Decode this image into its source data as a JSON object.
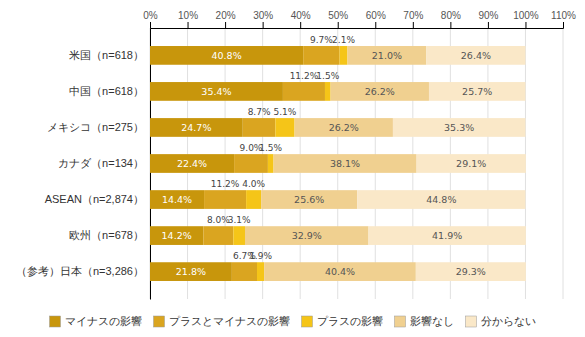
{
  "chart_data": {
    "type": "bar",
    "orientation": "horizontal",
    "stacked": true,
    "categories": [
      "米国（n=618）",
      "中国（n=618）",
      "メキシコ（n=275）",
      "カナダ（n=134）",
      "ASEAN（n=2,874）",
      "欧州（n=678）",
      "（参考）日本（n=3,286）"
    ],
    "series": [
      {
        "name": "マイナスの影響",
        "color": "#C8960C",
        "values": [
          40.8,
          35.4,
          24.7,
          22.4,
          14.4,
          14.2,
          21.8
        ],
        "value_labels": [
          "40.8%",
          "35.4%",
          "24.7%",
          "22.4%",
          "14.4%",
          "14.2%",
          "21.8%"
        ]
      },
      {
        "name": "プラスとマイナスの影響",
        "color": "#DAA520",
        "values": [
          9.7,
          11.2,
          8.7,
          9.0,
          11.2,
          8.0,
          6.7
        ],
        "value_labels": [
          "9.7%",
          "11.2%",
          "8.7%",
          "9.0%",
          "11.2%",
          "8.0%",
          "6.7%"
        ]
      },
      {
        "name": "プラスの影響",
        "color": "#F5C518",
        "values": [
          2.1,
          1.5,
          5.1,
          1.5,
          4.0,
          3.1,
          1.9
        ],
        "value_labels": [
          "2.1%",
          "1.5%",
          "5.1%",
          "1.5%",
          "4.0%",
          "3.1%",
          "1.9%"
        ]
      },
      {
        "name": "影響なし",
        "color": "#F0D090",
        "values": [
          21.0,
          26.2,
          26.2,
          38.1,
          25.6,
          32.9,
          40.4
        ],
        "value_labels": [
          "21.0%",
          "26.2%",
          "26.2%",
          "38.1%",
          "25.6%",
          "32.9%",
          "40.4%"
        ]
      },
      {
        "name": "分からない",
        "color": "#FAE8C8",
        "values": [
          26.4,
          25.7,
          35.3,
          29.1,
          44.8,
          41.9,
          29.3
        ],
        "value_labels": [
          "26.4%",
          "25.7%",
          "35.3%",
          "29.1%",
          "44.8%",
          "41.9%",
          "29.3%"
        ]
      }
    ],
    "xlim": [
      0,
      110
    ],
    "xticks": [
      {
        "value": 0,
        "label": "0%"
      },
      {
        "value": 10,
        "label": "10%"
      },
      {
        "value": 20,
        "label": "20%"
      },
      {
        "value": 30,
        "label": "30%"
      },
      {
        "value": 40,
        "label": "40%"
      },
      {
        "value": 50,
        "label": "50%"
      },
      {
        "value": 60,
        "label": "60%"
      },
      {
        "value": 70,
        "label": "70%"
      },
      {
        "value": 80,
        "label": "80%"
      },
      {
        "value": 90,
        "label": "90%"
      },
      {
        "value": 100,
        "label": "100%"
      },
      {
        "value": 110,
        "label": "110%"
      }
    ],
    "grid": true,
    "legend": "bottom",
    "data_labels": true
  }
}
